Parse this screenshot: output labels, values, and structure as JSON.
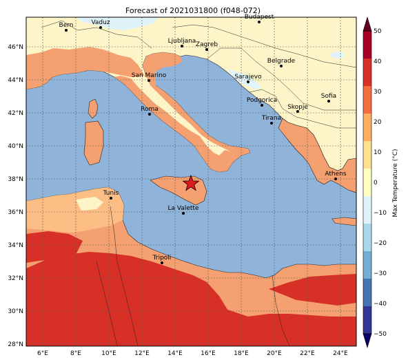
{
  "title": "Forecast of 2021031800 (f048-072)",
  "colorbar": {
    "label": "Max Temperature (°C)",
    "ticks": [
      "50",
      "40",
      "30",
      "20",
      "10",
      "0",
      "−10",
      "−20",
      "−30",
      "−40",
      "−50"
    ],
    "colors": [
      "#a50026",
      "#d73027",
      "#f46d43",
      "#fdae61",
      "#fee090",
      "#ffffbf",
      "#e0f3f8",
      "#abd9e9",
      "#74add1",
      "#4575b4",
      "#313695"
    ]
  },
  "map": {
    "lon_ticks": [
      "6°E",
      "8°E",
      "10°E",
      "12°E",
      "14°E",
      "16°E",
      "18°E",
      "20°E",
      "22°E",
      "24°E"
    ],
    "lat_ticks": [
      "46°N",
      "44°N",
      "42°N",
      "40°N",
      "38°N",
      "36°N",
      "34°N",
      "32°N",
      "30°N",
      "28°N"
    ],
    "sea_color": "#8fb3d9",
    "cities": [
      "Bern",
      "Vaduz",
      "Budapest",
      "Ljubljana",
      "Zagreb",
      "Belgrade",
      "San Marino",
      "Sarajevo",
      "Sofia",
      "Roma",
      "Podgorica",
      "Skopje",
      "Tirana",
      "Athens",
      "Tunis",
      "La Valette",
      "Tripoli"
    ],
    "marker": "star-marker"
  }
}
